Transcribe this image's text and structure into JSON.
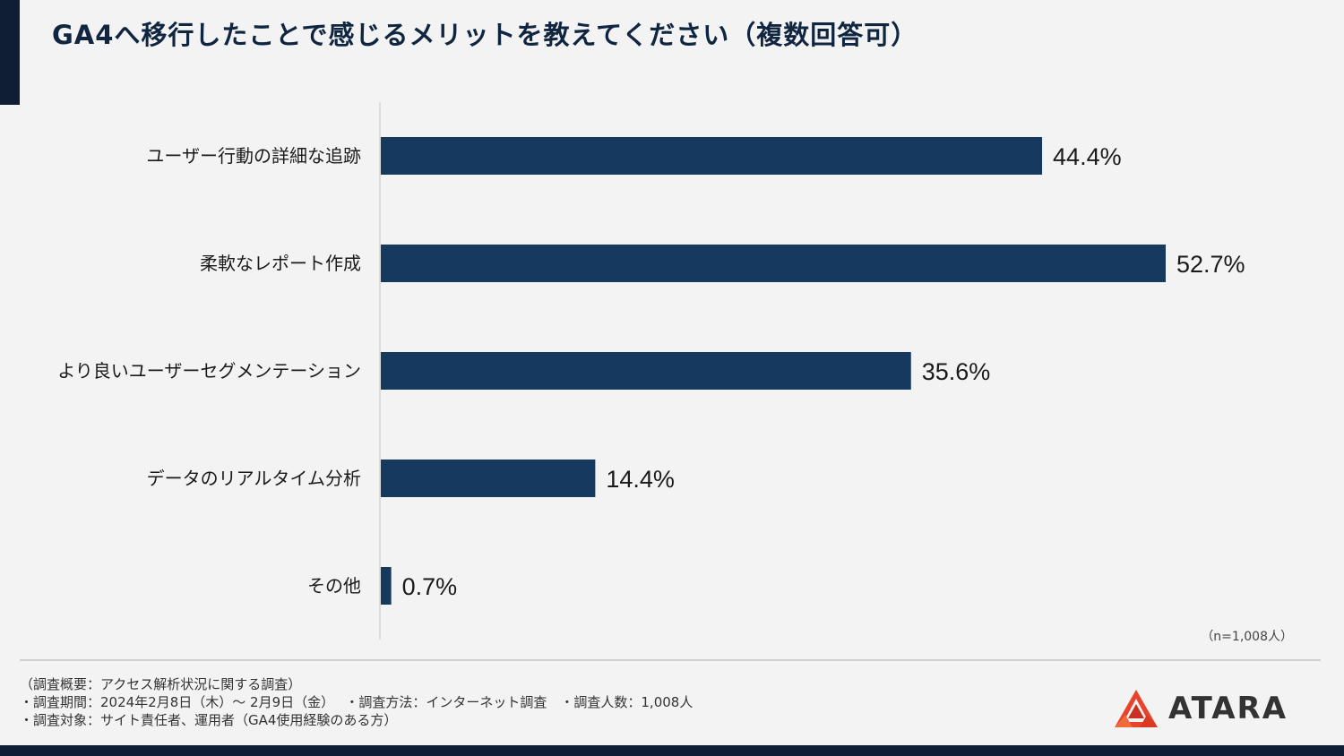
{
  "title": "GA4へ移行したことで感じるメリットを教えてください（複数回答可）",
  "chart_data": {
    "type": "bar",
    "orientation": "horizontal",
    "categories": [
      "ユーザー行動の詳細な追跡",
      "柔軟なレポート作成",
      "より良いユーザーセグメンテーション",
      "データのリアルタイム分析",
      "その他"
    ],
    "values": [
      44.4,
      52.7,
      35.6,
      14.4,
      0.7
    ],
    "data_labels": [
      "44.4%",
      "52.7%",
      "35.6%",
      "14.4%",
      "0.7%"
    ],
    "unit": "%",
    "xlim": [
      0,
      52.7
    ],
    "bar_color": "#163a5f",
    "grid": false,
    "legend": "none"
  },
  "sample_note": "（n=1,008人）",
  "footnotes": [
    "（調査概要：アクセス解析状況に関する調査）",
    "・調査期間：2024年2月8日（木）～ 2月9日（金）　 ・調査方法：インターネット調査　・調査人数：1,008人",
    "・調査対象：サイト責任者、運用者（GA4使用経験のある方）"
  ],
  "logo": {
    "text": "ATARA",
    "icon": "atara-logo-icon",
    "color": "#e8432b"
  },
  "colors": {
    "dark_navy": "#0f1e34",
    "bar": "#163a5f",
    "background": "#f3f3f3"
  }
}
